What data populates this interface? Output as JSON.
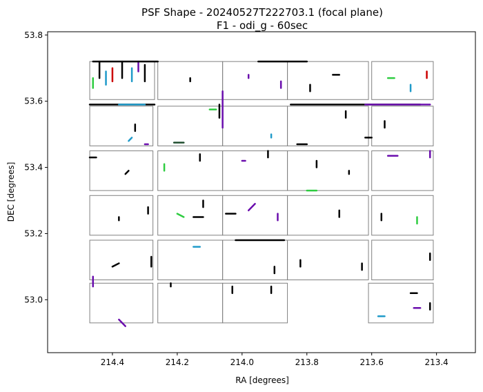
{
  "chart_data": {
    "type": "scatter",
    "title": "PSF Shape - 20240527T222703.1 (focal plane)",
    "subtitle": "F1 - odi_g - 60sec",
    "xlabel": "RA [degrees]",
    "ylabel": "DEC [degrees]",
    "xlim": [
      214.6,
      213.28
    ],
    "ylim": [
      52.84,
      53.81
    ],
    "x_ticks": [
      "214.4",
      "214.2",
      "214.0",
      "213.8",
      "213.6",
      "213.4"
    ],
    "y_ticks": [
      "53.0",
      "53.2",
      "53.4",
      "53.6",
      "53.8"
    ],
    "grid": false,
    "otas": [
      {
        "ra": [
          214.47,
          214.27
        ],
        "dec": [
          53.605,
          53.72
        ]
      },
      {
        "ra": [
          214.26,
          214.06
        ],
        "dec": [
          53.605,
          53.72
        ]
      },
      {
        "ra": [
          214.06,
          213.86
        ],
        "dec": [
          53.605,
          53.72
        ]
      },
      {
        "ra": [
          213.86,
          213.61
        ],
        "dec": [
          53.605,
          53.72
        ]
      },
      {
        "ra": [
          213.6,
          213.41
        ],
        "dec": [
          53.605,
          53.72
        ]
      },
      {
        "ra": [
          214.47,
          214.275
        ],
        "dec": [
          53.465,
          53.585
        ]
      },
      {
        "ra": [
          214.26,
          214.06
        ],
        "dec": [
          53.465,
          53.585
        ]
      },
      {
        "ra": [
          214.06,
          213.86
        ],
        "dec": [
          53.465,
          53.585
        ]
      },
      {
        "ra": [
          213.86,
          213.61
        ],
        "dec": [
          53.465,
          53.585
        ]
      },
      {
        "ra": [
          213.6,
          213.41
        ],
        "dec": [
          53.465,
          53.585
        ]
      },
      {
        "ra": [
          214.47,
          214.275
        ],
        "dec": [
          53.33,
          53.45
        ]
      },
      {
        "ra": [
          214.26,
          214.06
        ],
        "dec": [
          53.33,
          53.45
        ]
      },
      {
        "ra": [
          214.06,
          213.86
        ],
        "dec": [
          53.33,
          53.45
        ]
      },
      {
        "ra": [
          213.86,
          213.61
        ],
        "dec": [
          53.33,
          53.45
        ]
      },
      {
        "ra": [
          213.6,
          213.41
        ],
        "dec": [
          53.33,
          53.45
        ]
      },
      {
        "ra": [
          214.47,
          214.275
        ],
        "dec": [
          53.195,
          53.315
        ]
      },
      {
        "ra": [
          214.26,
          214.06
        ],
        "dec": [
          53.195,
          53.315
        ]
      },
      {
        "ra": [
          214.06,
          213.86
        ],
        "dec": [
          53.195,
          53.315
        ]
      },
      {
        "ra": [
          213.86,
          213.61
        ],
        "dec": [
          53.195,
          53.315
        ]
      },
      {
        "ra": [
          213.6,
          213.41
        ],
        "dec": [
          53.195,
          53.315
        ]
      },
      {
        "ra": [
          214.47,
          214.275
        ],
        "dec": [
          53.06,
          53.18
        ]
      },
      {
        "ra": [
          214.26,
          214.06
        ],
        "dec": [
          53.06,
          53.18
        ]
      },
      {
        "ra": [
          214.06,
          213.86
        ],
        "dec": [
          53.06,
          53.18
        ]
      },
      {
        "ra": [
          213.86,
          213.61
        ],
        "dec": [
          53.06,
          53.18
        ]
      },
      {
        "ra": [
          213.6,
          213.41
        ],
        "dec": [
          53.06,
          53.18
        ]
      },
      {
        "ra": [
          214.47,
          214.275
        ],
        "dec": [
          52.93,
          53.05
        ]
      },
      {
        "ra": [
          214.26,
          214.06
        ],
        "dec": [
          52.93,
          53.05
        ]
      },
      {
        "ra": [
          214.06,
          213.86
        ],
        "dec": [
          52.93,
          53.05
        ]
      },
      {
        "ra": [
          213.61,
          213.41
        ],
        "dec": [
          52.93,
          53.05
        ]
      }
    ],
    "vectors": [
      {
        "ra": 214.44,
        "dec": 53.67,
        "dra": 0.0,
        "ddec": 0.05,
        "color": "#000000"
      },
      {
        "ra": 214.42,
        "dec": 53.65,
        "dra": 0.0,
        "ddec": 0.04,
        "color": "#1f9ac9"
      },
      {
        "ra": 214.4,
        "dec": 53.66,
        "dra": 0.0,
        "ddec": 0.04,
        "color": "#cc0000"
      },
      {
        "ra": 214.37,
        "dec": 53.67,
        "dra": 0.0,
        "ddec": 0.05,
        "color": "#000000"
      },
      {
        "ra": 214.34,
        "dec": 53.66,
        "dra": 0.0,
        "ddec": 0.04,
        "color": "#1f9ac9"
      },
      {
        "ra": 214.3,
        "dec": 53.66,
        "dra": 0.0,
        "ddec": 0.05,
        "color": "#000000"
      },
      {
        "ra": 214.46,
        "dec": 53.64,
        "dra": 0.0,
        "ddec": 0.03,
        "color": "#2ecc40"
      },
      {
        "ra": 214.32,
        "dec": 53.69,
        "dra": 0.0,
        "ddec": 0.03,
        "color": "#6a0dad"
      },
      {
        "ra": 214.46,
        "dec": 53.72,
        "dra": 0.2,
        "ddec": 0.0,
        "color": "#000000"
      },
      {
        "ra": 214.47,
        "dec": 53.59,
        "dra": 0.2,
        "ddec": 0.0,
        "color": "#000000"
      },
      {
        "ra": 214.38,
        "dec": 53.59,
        "dra": 0.08,
        "ddec": 0.0,
        "color": "#1f9ac9"
      },
      {
        "ra": 214.06,
        "dec": 53.52,
        "dra": 0.0,
        "ddec": 0.11,
        "color": "#6a0dad"
      },
      {
        "ra": 214.07,
        "dec": 53.55,
        "dra": 0.0,
        "ddec": 0.04,
        "color": "#000000"
      },
      {
        "ra": 214.21,
        "dec": 53.475,
        "dra": 0.03,
        "ddec": 0.0,
        "color": "#1f4d2e"
      },
      {
        "ra": 214.1,
        "dec": 53.575,
        "dra": 0.02,
        "ddec": 0.0,
        "color": "#2ecc40"
      },
      {
        "ra": 213.95,
        "dec": 53.72,
        "dra": 0.15,
        "ddec": 0.0,
        "color": "#000000"
      },
      {
        "ra": 213.85,
        "dec": 53.59,
        "dra": 0.4,
        "ddec": 0.0,
        "color": "#000000"
      },
      {
        "ra": 213.62,
        "dec": 53.59,
        "dra": 0.2,
        "ddec": 0.0,
        "color": "#6a0dad"
      },
      {
        "ra": 214.05,
        "dec": 53.26,
        "dra": 0.03,
        "ddec": 0.0,
        "color": "#000000"
      },
      {
        "ra": 214.02,
        "dec": 53.18,
        "dra": 0.15,
        "ddec": 0.0,
        "color": "#000000"
      },
      {
        "ra": 213.8,
        "dec": 53.33,
        "dra": 0.03,
        "ddec": 0.0,
        "color": "#2ecc40"
      },
      {
        "ra": 213.55,
        "dec": 53.435,
        "dra": 0.03,
        "ddec": 0.0,
        "color": "#6a0dad"
      },
      {
        "ra": 213.62,
        "dec": 53.49,
        "dra": 0.02,
        "ddec": 0.0,
        "color": "#000000"
      },
      {
        "ra": 213.83,
        "dec": 53.47,
        "dra": 0.03,
        "ddec": 0.0,
        "color": "#000000"
      },
      {
        "ra": 214.15,
        "dec": 53.25,
        "dra": 0.03,
        "ddec": 0.0,
        "color": "#000000"
      },
      {
        "ra": 214.2,
        "dec": 53.26,
        "dra": 0.02,
        "ddec": -0.01,
        "color": "#2ecc40"
      },
      {
        "ra": 213.98,
        "dec": 53.27,
        "dra": 0.02,
        "ddec": 0.02,
        "color": "#6a0dad"
      },
      {
        "ra": 213.91,
        "dec": 53.02,
        "dra": 0.0,
        "ddec": 0.02,
        "color": "#000000"
      },
      {
        "ra": 213.47,
        "dec": 52.975,
        "dra": 0.02,
        "ddec": 0.0,
        "color": "#6a0dad"
      },
      {
        "ra": 213.58,
        "dec": 52.95,
        "dra": 0.02,
        "ddec": 0.0,
        "color": "#1f9ac9"
      },
      {
        "ra": 214.38,
        "dec": 52.94,
        "dra": 0.02,
        "ddec": -0.02,
        "color": "#6a0dad"
      },
      {
        "ra": 214.46,
        "dec": 53.04,
        "dra": 0.0,
        "ddec": 0.03,
        "color": "#6a0dad"
      },
      {
        "ra": 214.47,
        "dec": 53.43,
        "dra": 0.02,
        "ddec": 0.0,
        "color": "#000000"
      },
      {
        "ra": 214.4,
        "dec": 53.1,
        "dra": 0.02,
        "ddec": 0.01,
        "color": "#000000"
      },
      {
        "ra": 214.36,
        "dec": 53.38,
        "dra": 0.01,
        "ddec": 0.01,
        "color": "#000000"
      },
      {
        "ra": 214.3,
        "dec": 53.47,
        "dra": 0.01,
        "ddec": 0.0,
        "color": "#6a0dad"
      },
      {
        "ra": 214.33,
        "dec": 53.51,
        "dra": 0.0,
        "ddec": 0.02,
        "color": "#000000"
      },
      {
        "ra": 214.24,
        "dec": 53.39,
        "dra": 0.0,
        "ddec": 0.02,
        "color": "#2ecc40"
      },
      {
        "ra": 214.13,
        "dec": 53.42,
        "dra": 0.0,
        "ddec": 0.02,
        "color": "#000000"
      },
      {
        "ra": 214.12,
        "dec": 53.28,
        "dra": 0.0,
        "ddec": 0.02,
        "color": "#000000"
      },
      {
        "ra": 214.0,
        "dec": 53.42,
        "dra": 0.01,
        "ddec": 0.0,
        "color": "#6a0dad"
      },
      {
        "ra": 213.92,
        "dec": 53.43,
        "dra": 0.0,
        "ddec": 0.02,
        "color": "#000000"
      },
      {
        "ra": 213.9,
        "dec": 53.08,
        "dra": 0.0,
        "ddec": 0.02,
        "color": "#000000"
      },
      {
        "ra": 213.77,
        "dec": 53.4,
        "dra": 0.0,
        "ddec": 0.02,
        "color": "#000000"
      },
      {
        "ra": 213.67,
        "dec": 53.38,
        "dra": 0.0,
        "ddec": 0.01,
        "color": "#000000"
      },
      {
        "ra": 213.42,
        "dec": 53.43,
        "dra": 0.0,
        "ddec": 0.02,
        "color": "#6a0dad"
      },
      {
        "ra": 213.46,
        "dec": 53.23,
        "dra": 0.0,
        "ddec": 0.02,
        "color": "#2ecc40"
      },
      {
        "ra": 213.42,
        "dec": 53.12,
        "dra": 0.0,
        "ddec": 0.02,
        "color": "#000000"
      },
      {
        "ra": 213.48,
        "dec": 53.02,
        "dra": 0.02,
        "ddec": 0.0,
        "color": "#000000"
      },
      {
        "ra": 213.42,
        "dec": 52.97,
        "dra": 0.0,
        "ddec": 0.02,
        "color": "#000000"
      },
      {
        "ra": 214.15,
        "dec": 53.16,
        "dra": 0.02,
        "ddec": 0.0,
        "color": "#1f9ac9"
      },
      {
        "ra": 214.03,
        "dec": 53.02,
        "dra": 0.0,
        "ddec": 0.02,
        "color": "#000000"
      },
      {
        "ra": 214.22,
        "dec": 53.04,
        "dra": 0.0,
        "ddec": 0.01,
        "color": "#000000"
      },
      {
        "ra": 213.79,
        "dec": 53.63,
        "dra": 0.0,
        "ddec": 0.02,
        "color": "#000000"
      },
      {
        "ra": 213.72,
        "dec": 53.68,
        "dra": 0.02,
        "ddec": 0.0,
        "color": "#000000"
      },
      {
        "ra": 213.55,
        "dec": 53.67,
        "dra": 0.02,
        "ddec": 0.0,
        "color": "#2ecc40"
      },
      {
        "ra": 213.48,
        "dec": 53.63,
        "dra": 0.0,
        "ddec": 0.02,
        "color": "#1f9ac9"
      },
      {
        "ra": 213.43,
        "dec": 53.67,
        "dra": 0.0,
        "ddec": 0.02,
        "color": "#cc0000"
      },
      {
        "ra": 213.98,
        "dec": 53.67,
        "dra": 0.0,
        "ddec": 0.01,
        "color": "#6a0dad"
      },
      {
        "ra": 213.88,
        "dec": 53.64,
        "dra": 0.0,
        "ddec": 0.02,
        "color": "#6a0dad"
      },
      {
        "ra": 214.16,
        "dec": 53.66,
        "dra": 0.0,
        "ddec": 0.01,
        "color": "#000000"
      },
      {
        "ra": 213.68,
        "dec": 53.55,
        "dra": 0.0,
        "ddec": 0.02,
        "color": "#000000"
      },
      {
        "ra": 213.56,
        "dec": 53.52,
        "dra": 0.0,
        "ddec": 0.02,
        "color": "#000000"
      },
      {
        "ra": 213.91,
        "dec": 53.49,
        "dra": 0.0,
        "ddec": 0.01,
        "color": "#1f9ac9"
      },
      {
        "ra": 214.35,
        "dec": 53.48,
        "dra": 0.01,
        "ddec": 0.01,
        "color": "#1f9ac9"
      },
      {
        "ra": 214.29,
        "dec": 53.26,
        "dra": 0.0,
        "ddec": 0.02,
        "color": "#000000"
      },
      {
        "ra": 214.38,
        "dec": 53.24,
        "dra": 0.0,
        "ddec": 0.01,
        "color": "#000000"
      },
      {
        "ra": 214.28,
        "dec": 53.1,
        "dra": 0.0,
        "ddec": 0.03,
        "color": "#000000"
      },
      {
        "ra": 213.82,
        "dec": 53.1,
        "dra": 0.0,
        "ddec": 0.02,
        "color": "#000000"
      },
      {
        "ra": 213.63,
        "dec": 53.09,
        "dra": 0.0,
        "ddec": 0.02,
        "color": "#000000"
      },
      {
        "ra": 213.89,
        "dec": 53.24,
        "dra": 0.0,
        "ddec": 0.02,
        "color": "#6a0dad"
      },
      {
        "ra": 213.57,
        "dec": 53.24,
        "dra": 0.0,
        "ddec": 0.02,
        "color": "#000000"
      },
      {
        "ra": 213.7,
        "dec": 53.25,
        "dra": 0.0,
        "ddec": 0.02,
        "color": "#000000"
      }
    ]
  }
}
